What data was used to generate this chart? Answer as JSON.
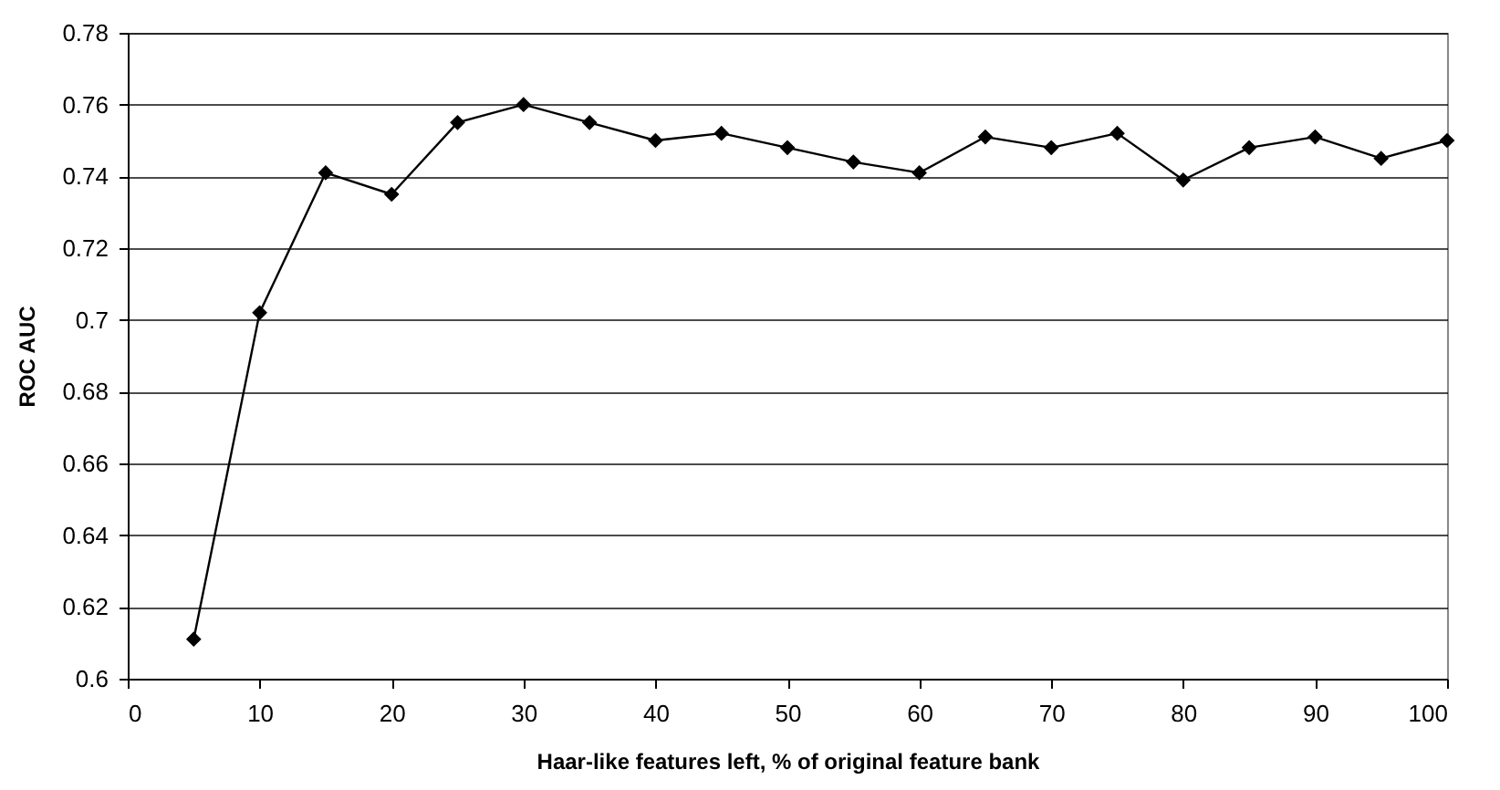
{
  "chart_data": {
    "type": "line",
    "xlabel": "Haar-like features left, % of original feature bank",
    "ylabel": "ROC AUC",
    "x": [
      5,
      10,
      15,
      20,
      25,
      30,
      35,
      40,
      45,
      50,
      55,
      60,
      65,
      70,
      75,
      80,
      85,
      90,
      95,
      100
    ],
    "series": [
      {
        "color": "#000000",
        "values": [
          0.611,
          0.702,
          0.741,
          0.735,
          0.755,
          0.76,
          0.755,
          0.75,
          0.752,
          0.748,
          0.744,
          0.741,
          0.751,
          0.748,
          0.752,
          0.739,
          0.748,
          0.751,
          0.745,
          0.75
        ]
      }
    ],
    "xlim": [
      0,
      100
    ],
    "xticks": [
      0,
      10,
      20,
      30,
      40,
      50,
      60,
      70,
      80,
      90,
      100
    ],
    "ylim": [
      0.6,
      0.78
    ],
    "yticks": [
      0.6,
      0.62,
      0.64,
      0.66,
      0.68,
      0.7,
      0.72,
      0.74,
      0.76,
      0.78
    ],
    "grid": "y",
    "marker": "diamond",
    "line_style": "solid"
  }
}
